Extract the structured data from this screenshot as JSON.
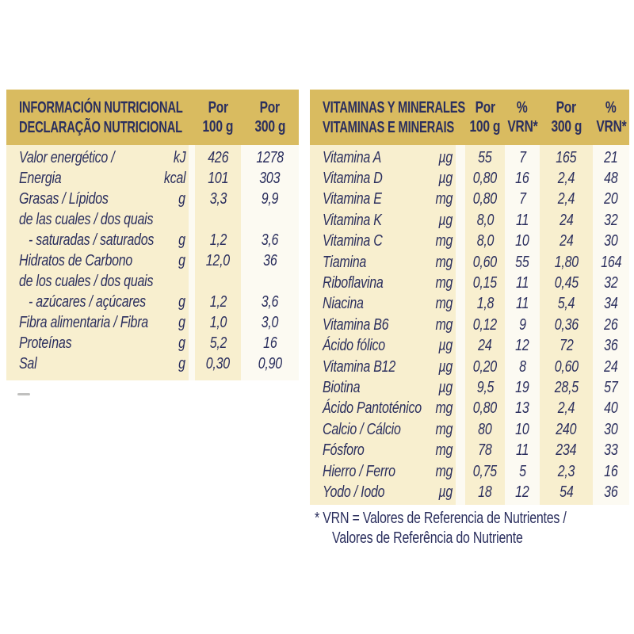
{
  "colors": {
    "header_gold": "#D9BB60",
    "band_cream": "#F8EFCF",
    "paper": "#FCFAF2",
    "text_navy": "#2B2F5E"
  },
  "left_table": {
    "title_line1": "INFORMACIÓN NUTRICIONAL",
    "title_line2": "DECLARAÇÃO NUTRICIONAL",
    "col_100g_line1": "Por",
    "col_100g_line2": "100 g",
    "col_300g_line1": "Por",
    "col_300g_line2": "300 g",
    "rows": [
      {
        "label": "Valor energético /",
        "unit": "kJ",
        "per_100g": "426",
        "per_300g": "1278"
      },
      {
        "label": "Energia",
        "unit": "kcal",
        "per_100g": "101",
        "per_300g": "303"
      },
      {
        "label": "Grasas / Lípidos",
        "unit": "g",
        "per_100g": "3,3",
        "per_300g": "9,9"
      },
      {
        "label": "de las cuales / dos quais",
        "unit": "",
        "per_100g": "",
        "per_300g": ""
      },
      {
        "label": "- saturadas / saturados",
        "unit": "g",
        "per_100g": "1,2",
        "per_300g": "3,6"
      },
      {
        "label": "Hidratos de Carbono",
        "unit": "g",
        "per_100g": "12,0",
        "per_300g": "36"
      },
      {
        "label": "de los cuales / dos quais",
        "unit": "",
        "per_100g": "",
        "per_300g": ""
      },
      {
        "label": "- azúcares / açúcares",
        "unit": "g",
        "per_100g": "1,2",
        "per_300g": "3,6"
      },
      {
        "label": "Fibra alimentaria / Fibra",
        "unit": "g",
        "per_100g": "1,0",
        "per_300g": "3,0"
      },
      {
        "label": "Proteínas",
        "unit": "g",
        "per_100g": "5,2",
        "per_300g": "16"
      },
      {
        "label": "Sal",
        "unit": "g",
        "per_100g": "0,30",
        "per_300g": "0,90"
      }
    ]
  },
  "right_table": {
    "title_line1": "VITAMINAS Y MINERALES",
    "title_line2": "VITAMINAS E MINERAIS",
    "col_100g_line1": "Por",
    "col_100g_line2": "100 g",
    "col_vrn1_line1": "%",
    "col_vrn1_line2": "VRN*",
    "col_300g_line1": "Por",
    "col_300g_line2": "300 g",
    "col_vrn2_line1": "%",
    "col_vrn2_line2": "VRN*",
    "rows": [
      {
        "label": "Vitamina A",
        "unit": "µg",
        "per_100g": "55",
        "vrn_100g": "7",
        "per_300g": "165",
        "vrn_300g": "21"
      },
      {
        "label": "Vitamina D",
        "unit": "µg",
        "per_100g": "0,80",
        "vrn_100g": "16",
        "per_300g": "2,4",
        "vrn_300g": "48"
      },
      {
        "label": "Vitamina E",
        "unit": "mg",
        "per_100g": "0,80",
        "vrn_100g": "7",
        "per_300g": "2,4",
        "vrn_300g": "20"
      },
      {
        "label": "Vitamina K",
        "unit": "µg",
        "per_100g": "8,0",
        "vrn_100g": "11",
        "per_300g": "24",
        "vrn_300g": "32"
      },
      {
        "label": "Vitamina C",
        "unit": "mg",
        "per_100g": "8,0",
        "vrn_100g": "10",
        "per_300g": "24",
        "vrn_300g": "30"
      },
      {
        "label": "Tiamina",
        "unit": "mg",
        "per_100g": "0,60",
        "vrn_100g": "55",
        "per_300g": "1,80",
        "vrn_300g": "164"
      },
      {
        "label": "Riboflavina",
        "unit": "mg",
        "per_100g": "0,15",
        "vrn_100g": "11",
        "per_300g": "0,45",
        "vrn_300g": "32"
      },
      {
        "label": "Niacina",
        "unit": "mg",
        "per_100g": "1,8",
        "vrn_100g": "11",
        "per_300g": "5,4",
        "vrn_300g": "34"
      },
      {
        "label": "Vitamina B6",
        "unit": "mg",
        "per_100g": "0,12",
        "vrn_100g": "9",
        "per_300g": "0,36",
        "vrn_300g": "26"
      },
      {
        "label": "Ácido fólico",
        "unit": "µg",
        "per_100g": "24",
        "vrn_100g": "12",
        "per_300g": "72",
        "vrn_300g": "36"
      },
      {
        "label": "Vitamina B12",
        "unit": "µg",
        "per_100g": "0,20",
        "vrn_100g": "8",
        "per_300g": "0,60",
        "vrn_300g": "24"
      },
      {
        "label": "Biotina",
        "unit": "µg",
        "per_100g": "9,5",
        "vrn_100g": "19",
        "per_300g": "28,5",
        "vrn_300g": "57"
      },
      {
        "label": "Ácido Pantoténico",
        "unit": "mg",
        "per_100g": "0,80",
        "vrn_100g": "13",
        "per_300g": "2,4",
        "vrn_300g": "40"
      },
      {
        "label": "Calcio / Cálcio",
        "unit": "mg",
        "per_100g": "80",
        "vrn_100g": "10",
        "per_300g": "240",
        "vrn_300g": "30"
      },
      {
        "label": "Fósforo",
        "unit": "mg",
        "per_100g": "78",
        "vrn_100g": "11",
        "per_300g": "234",
        "vrn_300g": "33"
      },
      {
        "label": "Hierro / Ferro",
        "unit": "mg",
        "per_100g": "0,75",
        "vrn_100g": "5",
        "per_300g": "2,3",
        "vrn_300g": "16"
      },
      {
        "label": "Yodo / Iodo",
        "unit": "µg",
        "per_100g": "18",
        "vrn_100g": "12",
        "per_300g": "54",
        "vrn_300g": "36"
      }
    ]
  },
  "footnote": {
    "line1": "* VRN = Valores de Referencia de Nutrientes /",
    "line2": "Valores de Referência do Nutriente"
  }
}
